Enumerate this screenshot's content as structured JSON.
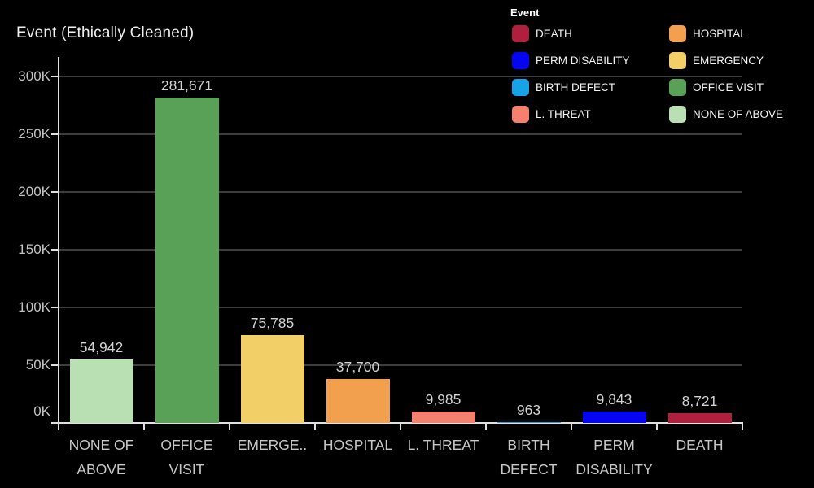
{
  "title": "Event (Ethically Cleaned)",
  "legend": {
    "title": "Event",
    "items": [
      {
        "label": "DEATH",
        "color": "#b01f3e"
      },
      {
        "label": "PERM DISABILITY",
        "color": "#0505f2"
      },
      {
        "label": "BIRTH DEFECT",
        "color": "#18a3e8"
      },
      {
        "label": "L. THREAT",
        "color": "#f5806e"
      },
      {
        "label": "HOSPITAL",
        "color": "#f2a04e"
      },
      {
        "label": "EMERGENCY",
        "color": "#f3cf68"
      },
      {
        "label": "OFFICE VISIT",
        "color": "#58a156"
      },
      {
        "label": "NONE OF ABOVE",
        "color": "#b9e0b2"
      }
    ]
  },
  "chart_data": {
    "type": "bar",
    "title": "Event (Ethically Cleaned)",
    "xlabel": "",
    "ylabel": "",
    "categories": [
      "NONE OF ABOVE",
      "OFFICE VISIT",
      "EMERGENCY",
      "HOSPITAL",
      "L. THREAT",
      "BIRTH DEFECT",
      "PERM DISABILITY",
      "DEATH"
    ],
    "x_tick_labels": [
      [
        "NONE OF",
        "ABOVE"
      ],
      [
        "OFFICE",
        "VISIT"
      ],
      [
        "EMERGE.."
      ],
      [
        "HOSPITAL"
      ],
      [
        "L. THREAT"
      ],
      [
        "BIRTH",
        "DEFECT"
      ],
      [
        "PERM",
        "DISABILITY"
      ],
      [
        "DEATH"
      ]
    ],
    "values": [
      54942,
      281671,
      75785,
      37700,
      9985,
      963,
      9843,
      8721
    ],
    "value_labels": [
      "54,942",
      "281,671",
      "75,785",
      "37,700",
      "9,985",
      "963",
      "9,843",
      "8,721"
    ],
    "bar_colors": [
      "#b9e0b2",
      "#58a156",
      "#f3cf68",
      "#f2a04e",
      "#f5806e",
      "#18a3e8",
      "#0505f2",
      "#b01f3e"
    ],
    "y_ticks": [
      {
        "label": "0K",
        "value": 0
      },
      {
        "label": "50K",
        "value": 50000
      },
      {
        "label": "100K",
        "value": 100000
      },
      {
        "label": "150K",
        "value": 150000
      },
      {
        "label": "200K",
        "value": 200000
      },
      {
        "label": "250K",
        "value": 250000
      },
      {
        "label": "300K",
        "value": 300000
      }
    ],
    "ylim": [
      0,
      300000
    ],
    "grid": true,
    "legend_position": "top-right",
    "colors": {
      "background": "#000000",
      "gridline": "#3d3d3d",
      "axis": "#e0e0e0",
      "tick_label": "#c3c3c3",
      "x_label": "#c7c7c7",
      "value_label": "#d2d2d2",
      "title_text": "#efefef",
      "legend_text": "#f2f2f2"
    }
  }
}
